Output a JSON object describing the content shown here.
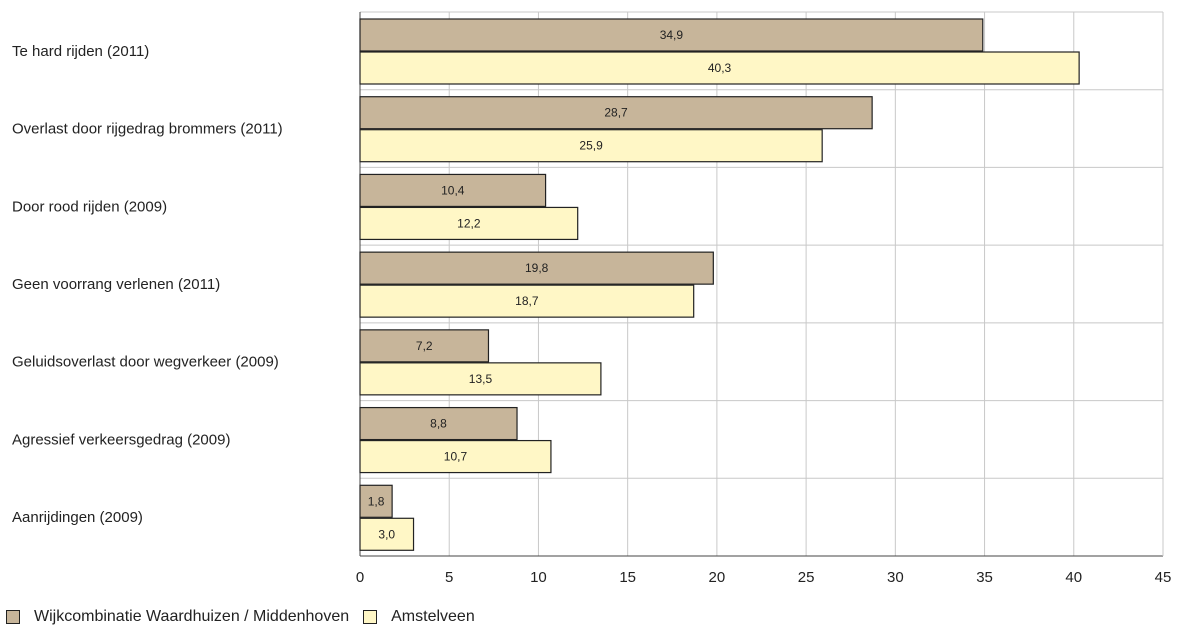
{
  "chart_data": {
    "type": "bar",
    "orientation": "horizontal",
    "categories": [
      "Te hard rijden (2011)",
      "Overlast door rijgedrag brommers (2011)",
      "Door rood rijden (2009)",
      "Geen voorrang verlenen (2011)",
      "Geluidsoverlast door wegverkeer (2009)",
      "Agressief verkeersgedrag (2009)",
      "Aanrijdingen (2009)"
    ],
    "series": [
      {
        "name": "Wijkcombinatie Waardhuizen / Middenhoven",
        "color": "#c7b59a",
        "values": [
          34.9,
          28.7,
          10.4,
          19.8,
          7.2,
          8.8,
          1.8
        ],
        "labels": [
          "34,9",
          "28,7",
          "10,4",
          "19,8",
          "7,2",
          "8,8",
          "1,8"
        ]
      },
      {
        "name": "Amstelveen",
        "color": "#fff7c6",
        "values": [
          40.3,
          25.9,
          12.2,
          18.7,
          13.5,
          10.7,
          3.0
        ],
        "labels": [
          "40,3",
          "25,9",
          "12,2",
          "18,7",
          "13,5",
          "10,7",
          "3,0"
        ]
      }
    ],
    "xlim": [
      0,
      45
    ],
    "xticks": [
      "0",
      "5",
      "10",
      "15",
      "20",
      "25",
      "30",
      "35",
      "40",
      "45"
    ],
    "grid": true,
    "legend_position": "bottom-left",
    "title": "",
    "xlabel": "",
    "ylabel": ""
  }
}
